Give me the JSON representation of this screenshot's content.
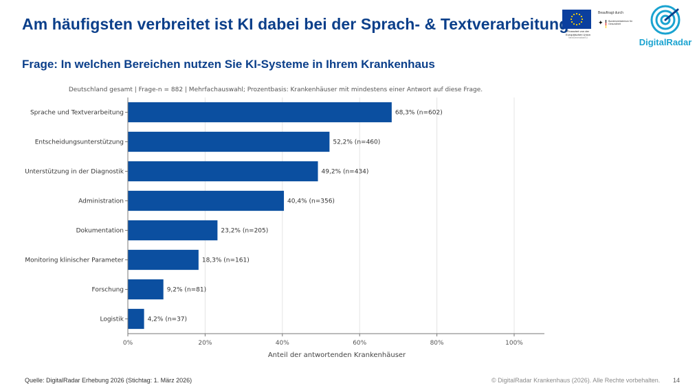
{
  "header": {
    "title": "Am häufigsten verbreitet ist KI dabei bei der Sprach- & Textverarbeitung",
    "question": "Frage: In welchen Bereichen nutzen Sie KI-Systeme in Ihrem Krankenhaus"
  },
  "logos": {
    "eu_text": "Finanziert von der Europäischen Union",
    "eu_sub": "NextGenerationEU",
    "bmg_top": "Beauftragt durch",
    "bmg_name": "Bundesministerium für Gesundheit",
    "digitalradar": "DigitalRadar",
    "icon": "digitalradar-radar-icon"
  },
  "chart_data": {
    "type": "bar",
    "orientation": "horizontal",
    "subtitle": "Deutschland gesamt | Frage-n = 882 | Mehrfachauswahl; Prozentbasis: Krankenhäuser mit mindestens einer Antwort auf diese Frage.",
    "xlabel": "Anteil der antwortenden Krankenhäuser",
    "ylabel": "",
    "xlim": [
      0,
      100
    ],
    "xticks": [
      "0%",
      "20%",
      "40%",
      "60%",
      "80%",
      "100%"
    ],
    "xtick_values": [
      0,
      20,
      40,
      60,
      80,
      100
    ],
    "grid": true,
    "bar_color": "#0b4fa0",
    "categories": [
      "Sprache und Textverarbeitung",
      "Entscheidungsunterstützung",
      "Unterstützung in der Diagnostik",
      "Administration",
      "Dokumentation",
      "Monitoring klinischer Parameter",
      "Forschung",
      "Logistik"
    ],
    "values": [
      68.3,
      52.2,
      49.2,
      40.4,
      23.2,
      18.3,
      9.2,
      4.2
    ],
    "data_labels": [
      "68,3% (n=602)",
      "52,2% (n=460)",
      "49,2% (n=434)",
      "40,4% (n=356)",
      "23,2% (n=205)",
      "18,3% (n=161)",
      "9,2% (n=81)",
      "4,2% (n=37)"
    ]
  },
  "footer": {
    "source": "Quelle: DigitalRadar Erhebung 2026 (Stichtag: 1. März 2026)",
    "copyright": "© DigitalRadar Krankenhaus (2026). Alle Rechte vorbehalten.",
    "page": "14"
  }
}
